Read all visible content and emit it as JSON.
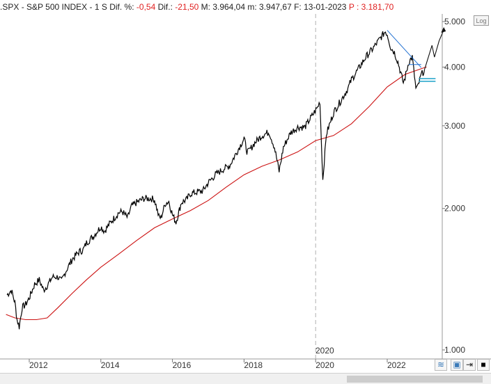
{
  "header": {
    "symbol": ".SPX",
    "sep1": " - ",
    "name": "S&P 500 INDEX",
    "sep2": " - ",
    "interval": "1 S",
    "dif_pct_label": " Dif. %: ",
    "dif_pct_value": "-0,54",
    "dif_label": " Dif.: ",
    "dif_value": "-21,50",
    "max_label": " M: ",
    "max_value": "3.964,04",
    "min_label": " m: ",
    "min_value": "3.947,67",
    "date_label": " F: ",
    "date_value": "13-01-2023",
    "p_label": " P : ",
    "p_value": "3.181,70"
  },
  "colors": {
    "price": "#000000",
    "moving_average": "#cc1111",
    "trendline": "#1f6fd1",
    "support": "#1aa0c8",
    "negative": "#e02020",
    "grid": "#b0b0b0"
  },
  "log_button": "Log",
  "cursor_label": "2020",
  "toolbar": {
    "icons": [
      "wave-icon",
      "save-icon",
      "crosshair-icon",
      "black-square-icon"
    ]
  },
  "chart_data": {
    "type": "line",
    "scale": "log",
    "ylim": [
      1000,
      5200
    ],
    "xlim": [
      2011.35,
      2023.6
    ],
    "y_ticks": [
      {
        "value": 5000,
        "label": "5.000"
      },
      {
        "value": 4000,
        "label": "4.000"
      },
      {
        "value": 3000,
        "label": "3.000"
      },
      {
        "value": 2000,
        "label": "2.000"
      },
      {
        "value": 1000,
        "label": "1.000"
      }
    ],
    "x_ticks": [
      {
        "value": 2012,
        "label": "2012"
      },
      {
        "value": 2014,
        "label": "2014"
      },
      {
        "value": 2016,
        "label": "2016"
      },
      {
        "value": 2018,
        "label": "2018"
      },
      {
        "value": 2020,
        "label": "2020"
      },
      {
        "value": 2022,
        "label": "2022"
      }
    ],
    "grid_x": [
      2020
    ],
    "series": [
      {
        "x": [
          2011.38,
          2011.5,
          2011.6,
          2011.66,
          2011.72,
          2011.8,
          2011.9,
          2012.0,
          2012.15,
          2012.28,
          2012.4,
          2012.5,
          2012.65,
          2012.8,
          2012.9,
          2013.0,
          2013.2,
          2013.4,
          2013.5,
          2013.6,
          2013.8,
          2014.0,
          2014.1,
          2014.3,
          2014.5,
          2014.6,
          2014.75,
          2014.85,
          2015.0,
          2015.2,
          2015.4,
          2015.5,
          2015.62,
          2015.68,
          2015.8,
          2015.9,
          2016.0,
          2016.1,
          2016.25,
          2016.4,
          2016.5,
          2016.7,
          2016.85,
          2017.0,
          2017.2,
          2017.4,
          2017.6,
          2017.8,
          2018.0,
          2018.08,
          2018.12,
          2018.3,
          2018.5,
          2018.7,
          2018.85,
          2018.98,
          2019.1,
          2019.3,
          2019.4,
          2019.5,
          2019.7,
          2019.9,
          2020.05,
          2020.12,
          2020.2,
          2020.3,
          2020.5,
          2020.7,
          2020.9,
          2021.0,
          2021.2,
          2021.4,
          2021.6,
          2021.8,
          2021.95,
          2022.0,
          2022.1,
          2022.2,
          2022.3,
          2022.45,
          2022.5,
          2022.6,
          2022.7,
          2022.8,
          2022.85,
          2022.95,
          2023.0,
          2023.04
        ],
        "y": [
          1310,
          1340,
          1260,
          1160,
          1120,
          1230,
          1250,
          1290,
          1380,
          1410,
          1340,
          1370,
          1430,
          1430,
          1400,
          1460,
          1560,
          1620,
          1630,
          1690,
          1750,
          1830,
          1790,
          1880,
          1960,
          1970,
          1910,
          2020,
          2060,
          2100,
          2100,
          2090,
          1920,
          1910,
          2050,
          2070,
          1940,
          1870,
          2060,
          2090,
          2150,
          2170,
          2180,
          2270,
          2360,
          2420,
          2470,
          2640,
          2820,
          2650,
          2640,
          2760,
          2860,
          2910,
          2700,
          2400,
          2700,
          2900,
          2940,
          2980,
          2980,
          3150,
          3280,
          3380,
          2300,
          2880,
          3200,
          3390,
          3600,
          3760,
          3970,
          4200,
          4380,
          4600,
          4770,
          4700,
          4400,
          4300,
          4100,
          3700,
          3800,
          4100,
          4200,
          3600,
          3620,
          3850,
          3900,
          3950
        ]
      },
      {
        "x": [
          2011.35,
          2011.6,
          2011.9,
          2012.2,
          2012.5,
          2012.8,
          2013.2,
          2013.6,
          2014.0,
          2014.5,
          2015.0,
          2015.5,
          2016.0,
          2016.5,
          2017.0,
          2017.5,
          2018.0,
          2018.5,
          2019.0,
          2019.5,
          2020.0,
          2020.5,
          2021.0,
          2021.5,
          2022.0,
          2022.5,
          2023.0,
          2023.1
        ],
        "y": [
          1190,
          1170,
          1160,
          1160,
          1170,
          1230,
          1320,
          1410,
          1500,
          1600,
          1710,
          1820,
          1900,
          1980,
          2080,
          2220,
          2360,
          2460,
          2540,
          2640,
          2790,
          2860,
          3030,
          3300,
          3630,
          3860,
          3980,
          4000
        ]
      }
    ],
    "annotations": {
      "trendline": {
        "x": [
          2022.0,
          2022.95
        ],
        "y": [
          4790,
          3990
        ]
      },
      "support_levels": [
        3780,
        3730
      ],
      "support_range": [
        2022.88,
        2023.35
      ],
      "projection": {
        "x": [
          2023.04,
          2023.25,
          2023.32,
          2023.45,
          2023.58
        ],
        "y": [
          3950,
          4450,
          4200,
          4550,
          4800
        ]
      }
    }
  }
}
